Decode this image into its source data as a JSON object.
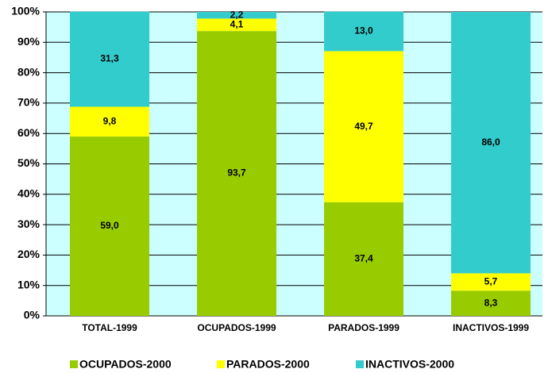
{
  "chart_data": {
    "type": "stacked_bar",
    "categories": [
      "TOTAL-1999",
      "OCUPADOS-1999",
      "PARADOS-1999",
      "INACTIVOS-1999"
    ],
    "series": [
      {
        "name": "OCUPADOS-2000",
        "color": "#99cc00",
        "values": [
          59.0,
          93.7,
          37.4,
          8.3
        ],
        "value_labels": [
          "59,0",
          "93,7",
          "37,4",
          "8,3"
        ]
      },
      {
        "name": "PARADOS-2000",
        "color": "#ffff00",
        "values": [
          9.8,
          4.1,
          49.7,
          5.7
        ],
        "value_labels": [
          "9,8",
          "4,1",
          "49,7",
          "5,7"
        ]
      },
      {
        "name": "INACTIVOS-2000",
        "color": "#33cccc",
        "values": [
          31.3,
          2.2,
          13.0,
          86.0
        ],
        "value_labels": [
          "31,3",
          "2,2",
          "13,0",
          "86,0"
        ]
      }
    ],
    "ylim": [
      0,
      100
    ],
    "yticks": [
      {
        "value": 0,
        "label": "0%"
      },
      {
        "value": 10,
        "label": "10%"
      },
      {
        "value": 20,
        "label": "20%"
      },
      {
        "value": 30,
        "label": "30%"
      },
      {
        "value": 40,
        "label": "40%"
      },
      {
        "value": 50,
        "label": "50%"
      },
      {
        "value": 60,
        "label": "60%"
      },
      {
        "value": 70,
        "label": "70%"
      },
      {
        "value": 80,
        "label": "80%"
      },
      {
        "value": 90,
        "label": "90%"
      },
      {
        "value": 100,
        "label": "100%"
      }
    ],
    "grid": true,
    "plot_background": "#ccffff",
    "legend": "bottom"
  }
}
